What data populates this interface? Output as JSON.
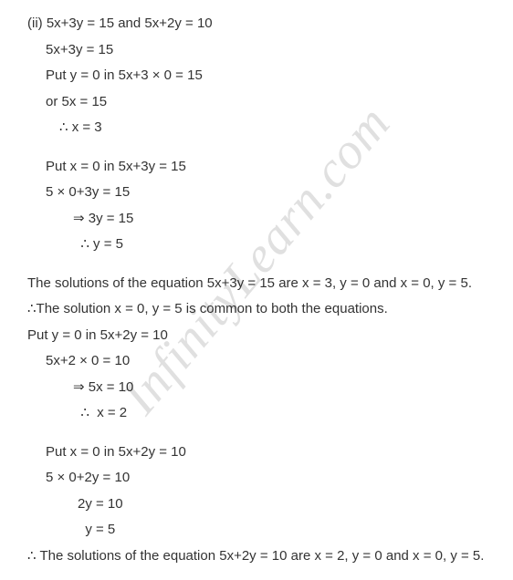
{
  "watermark": "InfinityLearn.com",
  "lines": [
    {
      "cls": "noindent",
      "text": "(ii) 5x+3y = 15 and 5x+2y = 10"
    },
    {
      "cls": "indent-1",
      "text": "5x+3y = 15"
    },
    {
      "cls": "indent-1",
      "text": "Put y = 0 in 5x+3 × 0 = 15"
    },
    {
      "cls": "indent-1",
      "text": "or 5x = 15"
    },
    {
      "cls": "indent-2",
      "text": "∴ x = 3"
    },
    {
      "cls": "gap",
      "text": ""
    },
    {
      "cls": "indent-1",
      "text": "Put x = 0 in 5x+3y = 15"
    },
    {
      "cls": "indent-1",
      "text": "5 × 0+3y = 15"
    },
    {
      "cls": "indent-3",
      "text": "⇒ 3y = 15"
    },
    {
      "cls": "indent-3",
      "text": "  ∴ y = 5"
    },
    {
      "cls": "gap",
      "text": ""
    },
    {
      "cls": "noindent",
      "text": "The solutions of the equation 5x+3y = 15 are x = 3, y = 0 and x = 0, y = 5."
    },
    {
      "cls": "noindent",
      "text": "∴The solution x = 0, y = 5 is common to both the equations."
    },
    {
      "cls": "noindent",
      "text": "Put y = 0 in 5x+2y = 10"
    },
    {
      "cls": "indent-1",
      "text": "5x+2 × 0 = 10"
    },
    {
      "cls": "indent-3",
      "text": "⇒ 5x = 10"
    },
    {
      "cls": "indent-3",
      "text": "  ∴  x = 2"
    },
    {
      "cls": "gap",
      "text": ""
    },
    {
      "cls": "indent-1",
      "text": "Put x = 0 in 5x+2y = 10"
    },
    {
      "cls": "indent-1",
      "text": "5 × 0+2y = 10"
    },
    {
      "cls": "indent-4",
      "text": "2y = 10"
    },
    {
      "cls": "indent-4",
      "text": "  y = 5"
    },
    {
      "cls": "noindent",
      "text": "∴ The solutions of the equation 5x+2y = 10 are x = 2, y = 0 and x = 0, y = 5."
    }
  ]
}
